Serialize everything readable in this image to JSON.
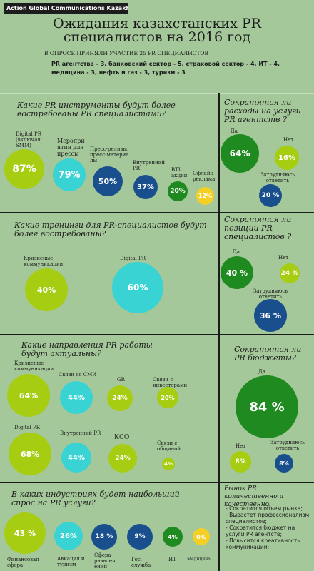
{
  "colors": {
    "bg": "#a4c89a",
    "lime": "#a6cd12",
    "cyan": "#3ad3d3",
    "navy": "#1a4f8e",
    "green": "#1f8a1f",
    "yellow": "#f4cf26"
  },
  "header": {
    "brand": "Action Global Communications Kazakhstan",
    "title_line1": "Ожидания казахстанских PR",
    "title_line2": "специалистов на 2016 год",
    "subtitle": "В ОПРОСЕ ПРИНЯЛИ УЧАСТИЕ  25 PR СПЕЦИАЛИСТОВ",
    "breakdown_line1": "PR агентства - 3, банковский сектор - 5, страховой сектор - 4, ИТ - 4,",
    "breakdown_line2": "медицина - 3, нефть и газ - 3, туризм - 3"
  },
  "q1": {
    "question": "Какие PR  инструменты будут более востребованы PR  специалистами?",
    "items": [
      {
        "label": "Digital PR (включая SMM)",
        "value": "87%",
        "color": "lime"
      },
      {
        "label": "Меропри ятия для прессы",
        "value": "79%",
        "color": "cyan"
      },
      {
        "label": "Пресс-релизы, пресс-материа лы",
        "value": "50%",
        "color": "navy"
      },
      {
        "label": "Внутренний PR",
        "value": "37%",
        "color": "navy"
      },
      {
        "label": "BTL акции",
        "value": "20%",
        "color": "green"
      },
      {
        "label": "Офлайн реклама",
        "value": "12%",
        "color": "yellow"
      }
    ]
  },
  "q2": {
    "question": "Сократятся ли расходы  на услуги PR агентств ?",
    "items": [
      {
        "label": "Да",
        "value": "64%",
        "color": "green"
      },
      {
        "label": "Нет",
        "value": "16%",
        "color": "lime"
      },
      {
        "label": "Затрудняюсь ответить",
        "value": "20 %",
        "color": "navy"
      }
    ]
  },
  "q3": {
    "question": "Какие тренинги для  PR-специалистов  будут более  востребованы?",
    "items": [
      {
        "label": "Кризисные коммуникации",
        "value": "40%",
        "color": "lime"
      },
      {
        "label": "Digital PR",
        "value": "60%",
        "color": "cyan"
      }
    ]
  },
  "q4": {
    "question": "Сократятся ли позиции PR специалистов ?",
    "items": [
      {
        "label": "Да",
        "value": "40 %",
        "color": "green"
      },
      {
        "label": "Нет",
        "value": "24 %",
        "color": "lime"
      },
      {
        "label": "Затрудняюсь ответить",
        "value": "36 %",
        "color": "navy"
      }
    ]
  },
  "q5": {
    "question": "Какие направления PR работы будут актуальны?",
    "items": [
      {
        "label": "Кризисные коммуникации",
        "value": "64%",
        "color": "lime"
      },
      {
        "label": "Связи со СМИ",
        "value": "44%",
        "color": "cyan"
      },
      {
        "label": "GR",
        "value": "24%",
        "color": "lime"
      },
      {
        "label": "Связи с инвесторами",
        "value": "20%",
        "color": "lime"
      },
      {
        "label": "Digital PR",
        "value": "68%",
        "color": "lime"
      },
      {
        "label": "Внутренний PR",
        "value": "44%",
        "color": "cyan"
      },
      {
        "label": "КСО",
        "value": "24%",
        "color": "lime"
      },
      {
        "label": "Связи с общиной",
        "value": "4%",
        "color": "lime"
      }
    ]
  },
  "q6": {
    "question": "Сократятся ли PR бюджеты?",
    "items": [
      {
        "label": "Да",
        "value": "84 %",
        "color": "green"
      },
      {
        "label": "Нет",
        "value": "8%",
        "color": "lime"
      },
      {
        "label": "Затрудняюсь ответить",
        "value": "8%",
        "color": "navy"
      }
    ]
  },
  "q7": {
    "question": "В каких индустриях будет наибольший спрос на PR услуги?",
    "items": [
      {
        "label": "Финансовая сфера",
        "value": "43 %",
        "color": "lime"
      },
      {
        "label": "Авиация и туризм",
        "value": "26%",
        "color": "cyan"
      },
      {
        "label": "Сфера развлеч ений",
        "value": "18 %",
        "color": "navy"
      },
      {
        "label": "Гос. служба",
        "value": "9%",
        "color": "navy"
      },
      {
        "label": "ИТ",
        "value": "4%",
        "color": "green"
      },
      {
        "label": "Медицина",
        "value": "0%",
        "color": "yellow"
      }
    ]
  },
  "q8": {
    "question": "Рынок PR количественно и качественно",
    "bullets": [
      "- Сократится объем рынка;",
      "- Вырастет профессионализм специалистов;",
      "- Сократится бюджет на услуги PR агентств;",
      "- Повысится креативность коммуникаций;"
    ]
  }
}
